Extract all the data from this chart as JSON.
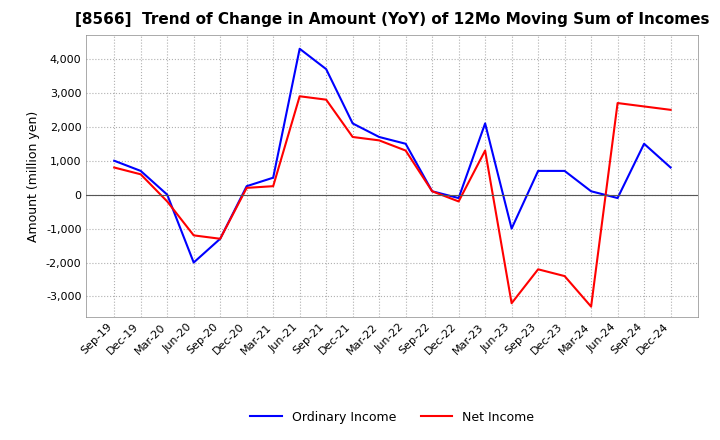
{
  "title": "[8566]  Trend of Change in Amount (YoY) of 12Mo Moving Sum of Incomes",
  "ylabel": "Amount (million yen)",
  "xlabels": [
    "Sep-19",
    "Dec-19",
    "Mar-20",
    "Jun-20",
    "Sep-20",
    "Dec-20",
    "Mar-21",
    "Jun-21",
    "Sep-21",
    "Dec-21",
    "Mar-22",
    "Jun-22",
    "Sep-22",
    "Dec-22",
    "Mar-23",
    "Jun-23",
    "Sep-23",
    "Dec-23",
    "Mar-24",
    "Jun-24",
    "Sep-24",
    "Dec-24"
  ],
  "ordinary_income": [
    1000,
    700,
    0,
    -2000,
    -1300,
    250,
    500,
    4300,
    3700,
    2100,
    1700,
    1500,
    100,
    -100,
    2100,
    -1000,
    700,
    700,
    100,
    -100,
    1500,
    800
  ],
  "net_income": [
    800,
    600,
    -200,
    -1200,
    -1300,
    200,
    250,
    2900,
    2800,
    1700,
    1600,
    1300,
    100,
    -200,
    1300,
    -3200,
    -2200,
    -2400,
    -3300,
    2700,
    2600,
    2500
  ],
  "ordinary_color": "#0000ff",
  "net_color": "#ff0000",
  "ylim": [
    -3600,
    4700
  ],
  "yticks": [
    -3000,
    -2000,
    -1000,
    0,
    1000,
    2000,
    3000,
    4000
  ],
  "background_color": "#ffffff",
  "grid_color": "#b0b0b0",
  "title_fontsize": 11,
  "axis_fontsize": 9,
  "tick_fontsize": 8,
  "legend_fontsize": 9
}
